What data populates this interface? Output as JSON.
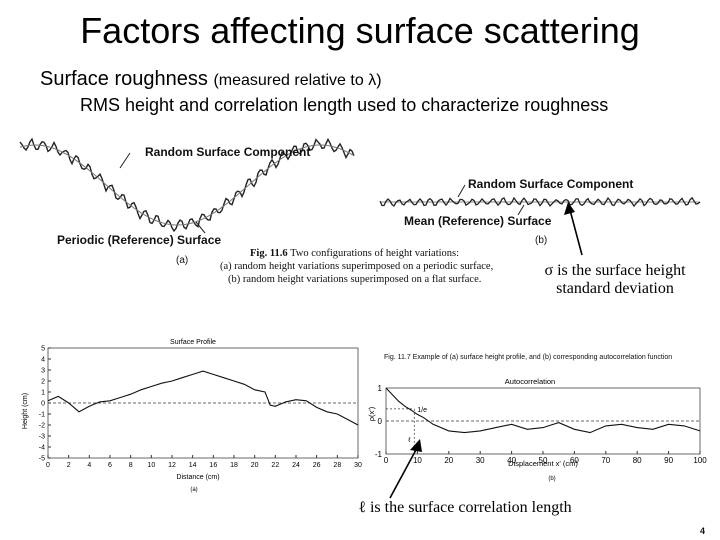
{
  "slide": {
    "title": "Factors affecting surface scattering",
    "bullet1_main": "Surface roughness",
    "bullet1_sub": "(measured relative to λ)",
    "bullet2": "RMS height and correlation length used to characterize roughness",
    "sigma_note_line1": "σ is the surface height",
    "sigma_note_line2": "standard deviation",
    "ell_note": "ℓ is the surface correlation length",
    "page_number": "4"
  },
  "fig116": {
    "label_random_a": "Random Surface Component",
    "label_periodic": "Periodic (Reference) Surface",
    "panel_a": "(a)",
    "label_random_b": "Random Surface Component",
    "label_mean": "Mean (Reference) Surface",
    "panel_b": "(b)",
    "caption_bold": "Fig. 11.6",
    "caption_line1": "Two configurations of height variations:",
    "caption_line2": "(a) random height variations superimposed on a periodic surface,",
    "caption_line3": "(b) random height variations superimposed on a flat surface."
  },
  "fig117": {
    "caption": "Fig. 11.7  Example of (a) surface height profile, and (b) corresponding autocorrelation function",
    "panel_a": "(a)",
    "panel_b": "(b)"
  },
  "chart_data": [
    {
      "type": "line",
      "title": "Surface Profile",
      "xlabel": "Distance (cm)",
      "ylabel": "Height (cm)",
      "xlim": [
        0,
        30
      ],
      "ylim": [
        -5,
        5
      ],
      "xticks": [
        0,
        2,
        4,
        6,
        8,
        10,
        12,
        14,
        16,
        18,
        20,
        22,
        24,
        26,
        28,
        30
      ],
      "yticks": [
        5,
        4,
        3,
        2,
        1,
        0,
        -1,
        -2,
        -3,
        -4,
        -5
      ],
      "reference_line": 0,
      "series": [
        {
          "x": [
            0,
            1,
            2,
            3,
            4,
            5,
            6,
            7,
            8,
            9,
            10,
            11,
            12,
            13,
            14,
            15,
            16,
            17,
            18,
            19,
            20,
            21,
            21.5,
            22,
            23,
            24,
            25,
            26,
            27,
            28,
            29,
            30
          ],
          "y": [
            0.2,
            0.6,
            0,
            -0.8,
            -0.3,
            0.1,
            0.2,
            0.5,
            0.8,
            1.2,
            1.5,
            1.8,
            2.0,
            2.3,
            2.6,
            2.9,
            2.6,
            2.3,
            2.0,
            1.7,
            1.2,
            1.0,
            -0.2,
            -0.3,
            0.1,
            0.3,
            0.2,
            -0.4,
            -0.8,
            -1.0,
            -1.5,
            -2.0
          ]
        }
      ]
    },
    {
      "type": "line",
      "title": "Autocorrelation",
      "xlabel": "Displacement x' (cm)",
      "ylabel": "ρ(x')",
      "xlim": [
        0,
        100
      ],
      "ylim": [
        -1,
        1
      ],
      "xticks": [
        0,
        10,
        20,
        30,
        40,
        50,
        60,
        70,
        80,
        90,
        100
      ],
      "yticks": [
        1,
        0,
        -1
      ],
      "annotations": [
        "1/e",
        "ℓ"
      ],
      "series": [
        {
          "x": [
            0,
            2,
            4,
            6,
            8,
            10,
            12,
            15,
            20,
            25,
            30,
            35,
            40,
            45,
            50,
            55,
            60,
            65,
            70,
            75,
            80,
            85,
            90,
            95,
            100
          ],
          "y": [
            1,
            0.8,
            0.6,
            0.45,
            0.33,
            0.2,
            0.1,
            -0.1,
            -0.3,
            -0.35,
            -0.3,
            -0.2,
            -0.1,
            -0.25,
            -0.2,
            -0.05,
            -0.25,
            -0.35,
            -0.15,
            -0.1,
            -0.2,
            -0.25,
            -0.1,
            -0.15,
            -0.3
          ]
        }
      ]
    }
  ]
}
